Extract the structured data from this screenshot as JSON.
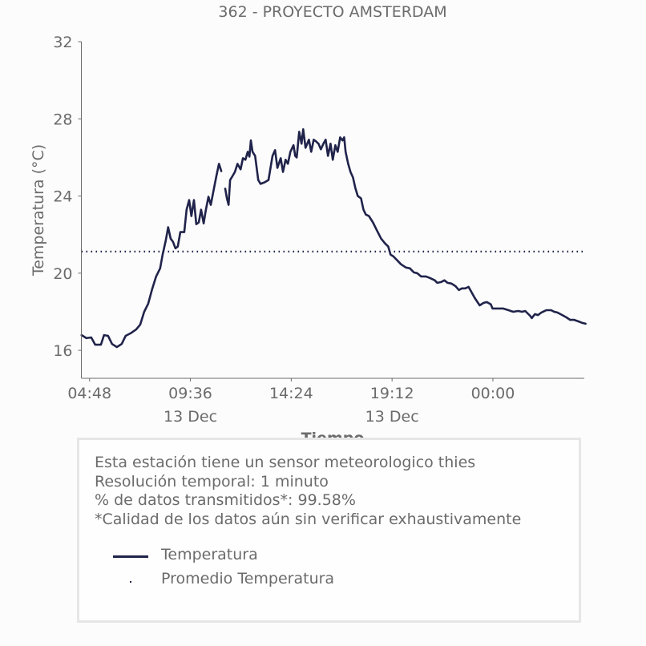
{
  "chart_data": {
    "type": "line",
    "title": "362 - PROYECTO AMSTERDAM",
    "xlabel": "Tiempo",
    "ylabel": "Temperatura (°C)",
    "ylim": [
      14.55,
      32
    ],
    "xlim_hours": [
      4.41,
      28.35
    ],
    "y_ticks": [
      16,
      20,
      24,
      28,
      32
    ],
    "x_ticks": [
      {
        "hour": 4.8,
        "label": "04:48",
        "sublabel": ""
      },
      {
        "hour": 9.6,
        "label": "09:36",
        "sublabel": "13 Dec"
      },
      {
        "hour": 14.4,
        "label": "14:24",
        "sublabel": ""
      },
      {
        "hour": 19.2,
        "label": "19:12",
        "sublabel": "13 Dec"
      },
      {
        "hour": 24.0,
        "label": "00:00",
        "sublabel": ""
      }
    ],
    "grid": false,
    "series": [
      {
        "name": "Temperatura",
        "style": "solid",
        "color": "#20234a",
        "segments": [
          [
            [
              4.42,
              16.79
            ],
            [
              4.65,
              16.63
            ],
            [
              4.88,
              16.67
            ],
            [
              5.07,
              16.29
            ],
            [
              5.34,
              16.29
            ],
            [
              5.49,
              16.79
            ],
            [
              5.68,
              16.75
            ],
            [
              5.87,
              16.33
            ],
            [
              6.1,
              16.17
            ],
            [
              6.33,
              16.33
            ],
            [
              6.52,
              16.75
            ],
            [
              6.75,
              16.88
            ],
            [
              7.02,
              17.08
            ],
            [
              7.21,
              17.33
            ],
            [
              7.4,
              18.0
            ],
            [
              7.59,
              18.42
            ],
            [
              7.78,
              19.17
            ],
            [
              7.97,
              19.83
            ],
            [
              8.16,
              20.25
            ],
            [
              8.28,
              20.96
            ],
            [
              8.43,
              21.71
            ],
            [
              8.54,
              22.38
            ],
            [
              8.66,
              21.79
            ],
            [
              8.77,
              21.63
            ],
            [
              8.89,
              21.29
            ],
            [
              9.0,
              21.38
            ],
            [
              9.12,
              22.13
            ],
            [
              9.31,
              22.13
            ],
            [
              9.42,
              23.29
            ],
            [
              9.54,
              23.79
            ],
            [
              9.65,
              22.96
            ],
            [
              9.77,
              23.79
            ],
            [
              9.88,
              22.54
            ],
            [
              10.0,
              22.63
            ],
            [
              10.11,
              23.29
            ],
            [
              10.23,
              22.58
            ],
            [
              10.34,
              23.29
            ],
            [
              10.46,
              23.96
            ],
            [
              10.57,
              23.54
            ],
            [
              10.69,
              24.21
            ],
            [
              10.84,
              25.04
            ],
            [
              10.96,
              25.67
            ],
            [
              11.07,
              25.29
            ]
          ],
          [
            [
              11.26,
              24.38
            ],
            [
              11.34,
              23.88
            ],
            [
              11.42,
              23.54
            ],
            [
              11.49,
              24.83
            ],
            [
              11.61,
              25.04
            ],
            [
              11.72,
              25.25
            ],
            [
              11.84,
              25.67
            ],
            [
              11.99,
              25.38
            ],
            [
              12.1,
              25.96
            ],
            [
              12.22,
              25.88
            ],
            [
              12.33,
              26.29
            ],
            [
              12.41,
              26.04
            ],
            [
              12.48,
              26.88
            ],
            [
              12.56,
              26.29
            ],
            [
              12.68,
              26.08
            ],
            [
              12.83,
              24.83
            ],
            [
              12.94,
              24.63
            ],
            [
              13.13,
              24.71
            ],
            [
              13.32,
              24.83
            ],
            [
              13.51,
              26.08
            ],
            [
              13.63,
              26.38
            ],
            [
              13.74,
              25.46
            ],
            [
              13.9,
              25.96
            ],
            [
              14.01,
              25.25
            ],
            [
              14.13,
              25.88
            ],
            [
              14.24,
              25.67
            ],
            [
              14.36,
              26.29
            ],
            [
              14.51,
              26.63
            ],
            [
              14.59,
              26.08
            ],
            [
              14.66,
              26.0
            ],
            [
              14.78,
              27.33
            ],
            [
              14.89,
              26.71
            ],
            [
              14.97,
              27.46
            ],
            [
              15.08,
              26.5
            ],
            [
              15.24,
              26.92
            ],
            [
              15.35,
              26.29
            ],
            [
              15.47,
              26.92
            ],
            [
              15.58,
              26.83
            ],
            [
              15.7,
              26.71
            ],
            [
              15.81,
              26.42
            ],
            [
              15.93,
              26.71
            ],
            [
              16.04,
              26.92
            ],
            [
              16.15,
              26.08
            ],
            [
              16.27,
              26.71
            ],
            [
              16.38,
              25.88
            ],
            [
              16.5,
              26.63
            ],
            [
              16.61,
              26.29
            ],
            [
              16.73,
              27.04
            ],
            [
              16.84,
              26.88
            ],
            [
              16.92,
              27.04
            ],
            [
              16.99,
              26.29
            ],
            [
              17.11,
              25.67
            ],
            [
              17.22,
              25.25
            ],
            [
              17.34,
              24.96
            ],
            [
              17.45,
              24.42
            ],
            [
              17.57,
              24.0
            ],
            [
              17.72,
              23.88
            ],
            [
              17.84,
              23.29
            ],
            [
              17.95,
              23.04
            ],
            [
              18.1,
              22.96
            ],
            [
              18.29,
              22.63
            ],
            [
              18.48,
              22.21
            ],
            [
              18.68,
              21.79
            ],
            [
              18.87,
              21.54
            ],
            [
              19.02,
              21.38
            ],
            [
              19.13,
              20.96
            ],
            [
              19.25,
              20.88
            ],
            [
              19.44,
              20.67
            ],
            [
              19.63,
              20.46
            ],
            [
              19.86,
              20.29
            ],
            [
              20.05,
              20.25
            ],
            [
              20.24,
              20.04
            ],
            [
              20.39,
              20.0
            ],
            [
              20.58,
              19.83
            ],
            [
              20.81,
              19.83
            ],
            [
              21.0,
              19.75
            ],
            [
              21.23,
              19.63
            ],
            [
              21.35,
              19.5
            ],
            [
              21.54,
              19.54
            ],
            [
              21.69,
              19.63
            ],
            [
              21.84,
              19.5
            ],
            [
              22.03,
              19.46
            ],
            [
              22.22,
              19.33
            ],
            [
              22.38,
              19.13
            ],
            [
              22.53,
              19.21
            ],
            [
              22.68,
              19.21
            ],
            [
              22.84,
              19.29
            ],
            [
              22.99,
              19.0
            ],
            [
              23.14,
              18.71
            ],
            [
              23.29,
              18.46
            ],
            [
              23.37,
              18.33
            ],
            [
              23.56,
              18.46
            ],
            [
              23.71,
              18.5
            ],
            [
              23.9,
              18.38
            ],
            [
              23.98,
              18.17
            ],
            [
              24.21,
              18.17
            ],
            [
              24.48,
              18.17
            ],
            [
              24.74,
              18.08
            ],
            [
              24.97,
              18.0
            ],
            [
              25.2,
              18.04
            ],
            [
              25.39,
              18.0
            ],
            [
              25.54,
              18.04
            ],
            [
              25.77,
              17.79
            ],
            [
              25.85,
              17.67
            ],
            [
              26.0,
              17.88
            ],
            [
              26.15,
              17.83
            ],
            [
              26.31,
              17.96
            ],
            [
              26.54,
              18.08
            ],
            [
              26.77,
              18.08
            ],
            [
              26.92,
              18.0
            ],
            [
              27.07,
              17.96
            ],
            [
              27.3,
              17.83
            ],
            [
              27.49,
              17.71
            ],
            [
              27.68,
              17.58
            ],
            [
              27.87,
              17.58
            ],
            [
              28.07,
              17.5
            ],
            [
              28.26,
              17.42
            ],
            [
              28.41,
              17.38
            ]
          ]
        ]
      },
      {
        "name": "Promedio Temperatura",
        "style": "dotted",
        "color": "#20234a",
        "value": 21.12
      }
    ],
    "legend": {
      "placement": "bottom-box",
      "entries": [
        "Temperatura",
        "Promedio Temperatura"
      ]
    }
  },
  "info_box": {
    "lines": [
      "Esta estación tiene un sensor meteorologico thies",
      "Resolución temporal: 1 minuto",
      "% de datos transmitidos*: 99.58%",
      "*Calidad de los datos aún sin verificar exhaustivamente"
    ]
  },
  "colors": {
    "line": "#20234a",
    "text": "#6b6b6b",
    "axis": "#6b6b6b",
    "background": "#fcfcfc",
    "box_border": "#e6e6e6"
  }
}
